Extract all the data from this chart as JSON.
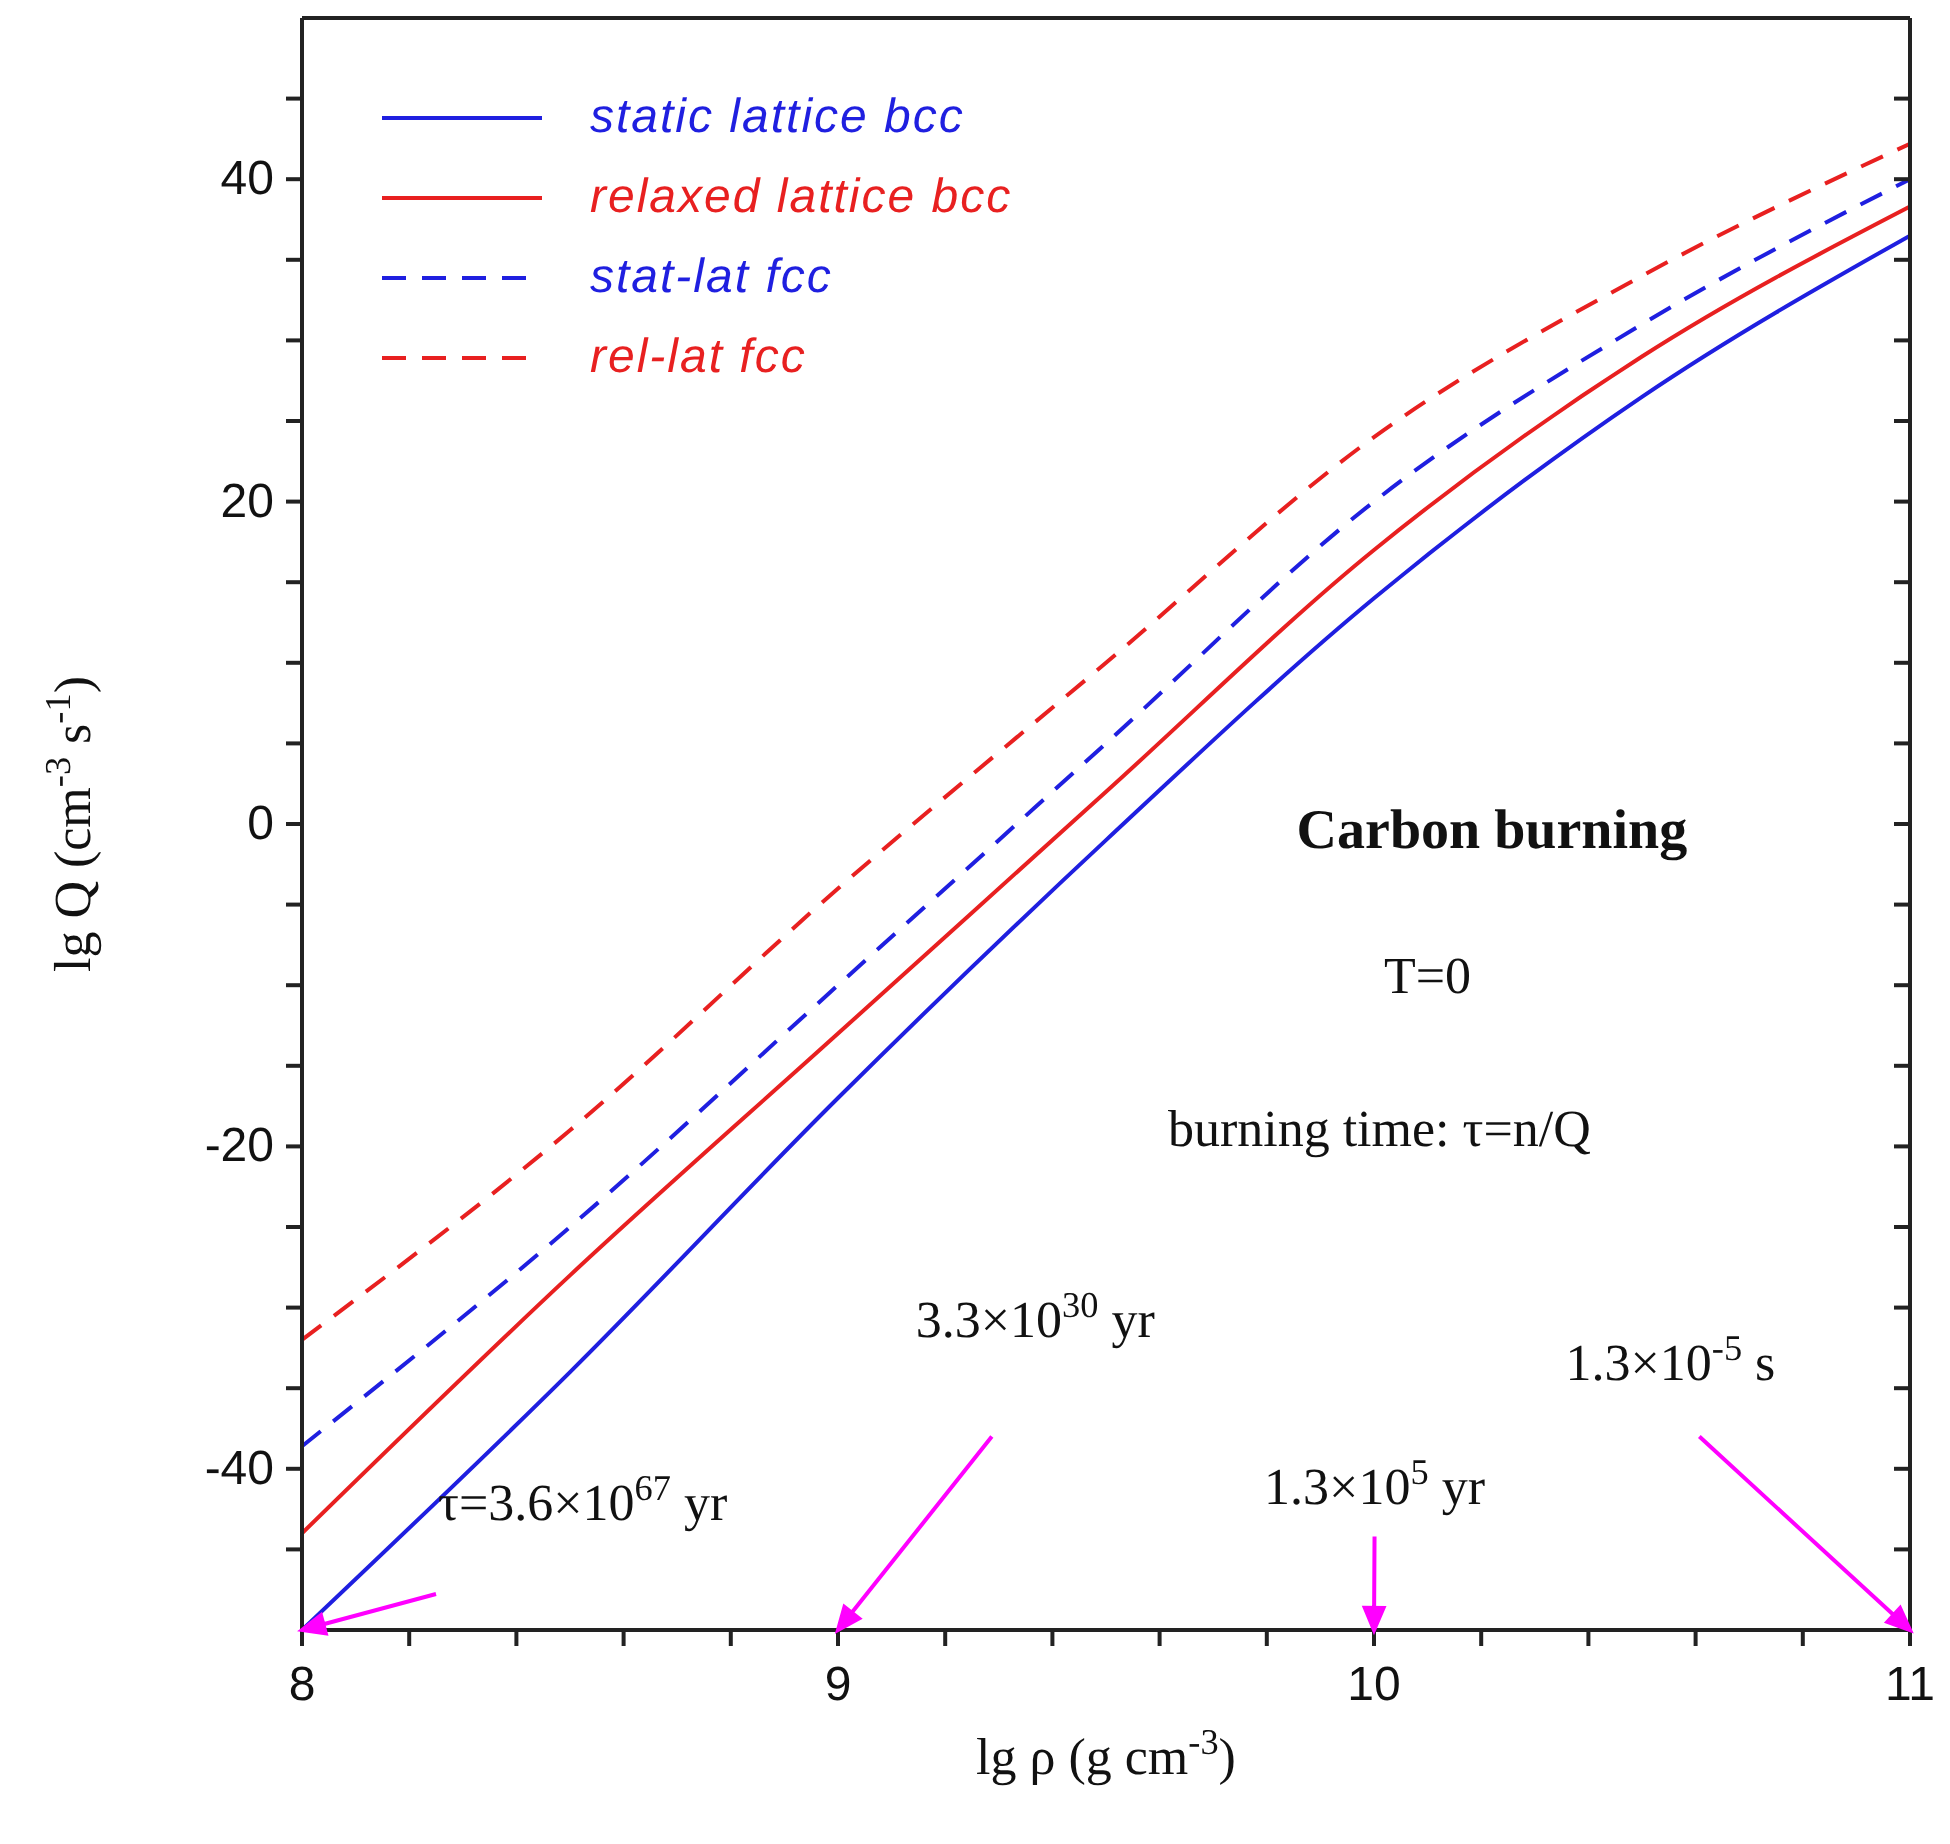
{
  "chart_data": {
    "type": "line",
    "xlabel": "lg ρ  (g cm$^{-3}$)",
    "ylabel": "lg Q  (cm$^{-3}$ s$^{-1}$)",
    "xlim": [
      8,
      11
    ],
    "xticks": [
      8,
      {
        "value": 8.2,
        "label": null
      },
      {
        "value": 8.4,
        "label": null
      },
      {
        "value": 8.6,
        "label": null
      },
      {
        "value": 8.8,
        "label": null
      },
      9,
      {
        "value": 9.2,
        "label": null
      },
      {
        "value": 9.4,
        "label": null
      },
      {
        "value": 9.6,
        "label": null
      },
      {
        "value": 9.8,
        "label": null
      },
      10,
      {
        "value": 10.2,
        "label": null
      },
      {
        "value": 10.4,
        "label": null
      },
      {
        "value": 10.6,
        "label": null
      },
      {
        "value": 10.8,
        "label": null
      },
      11
    ],
    "ylim": [
      -50,
      50
    ],
    "yticks": [
      {
        "value": -45,
        "label": null
      },
      -40,
      {
        "value": -35,
        "label": null
      },
      {
        "value": -30,
        "label": null
      },
      {
        "value": -25,
        "label": null
      },
      -20,
      {
        "value": -15,
        "label": null
      },
      {
        "value": -10,
        "label": null
      },
      {
        "value": -5,
        "label": null
      },
      0,
      {
        "value": 5,
        "label": null
      },
      {
        "value": 10,
        "label": null
      },
      {
        "value": 15,
        "label": null
      },
      20,
      {
        "value": 25,
        "label": null
      },
      {
        "value": 30,
        "label": null
      },
      {
        "value": 35,
        "label": null
      },
      40,
      {
        "value": 45,
        "label": null
      }
    ],
    "grid": false,
    "legend": "top left",
    "marker": "none",
    "x": [
      8,
      8.5,
      9,
      9.5,
      10,
      10.5,
      11
    ],
    "series": [
      {
        "name": "static lattice bcc",
        "color": "#1f1fe0",
        "line_style": "solid",
        "values": [
          -50,
          -34,
          -17,
          -1,
          14,
          26.5,
          36.5
        ]
      },
      {
        "name": "relaxed lattice bcc",
        "color": "#e82020",
        "line_style": "solid",
        "values": [
          -44,
          -28,
          -13,
          2,
          17,
          29,
          38.3
        ]
      },
      {
        "name": "stat-lat fcc",
        "color": "#1f1fe0",
        "line_style": "dashed",
        "values": [
          -38.6,
          -25,
          -10,
          5,
          20,
          31,
          40
        ]
      },
      {
        "name": "rel-lat fcc",
        "color": "#e82020",
        "line_style": "dashed",
        "values": [
          -32,
          -19,
          -4,
          10,
          24,
          34,
          42.2
        ]
      }
    ],
    "annotations": [
      "Carbon burning",
      "T=0",
      "burning time: τ=n/Q",
      {
        "text": "τ=3.6×10$^{67}$ yr",
        "x": 8,
        "y": -50
      },
      "3.3×10$^{30}$ yr",
      "1.3×10$^{5}$ yr",
      "1.3×10$^{-5}$ s"
    ]
  }
}
